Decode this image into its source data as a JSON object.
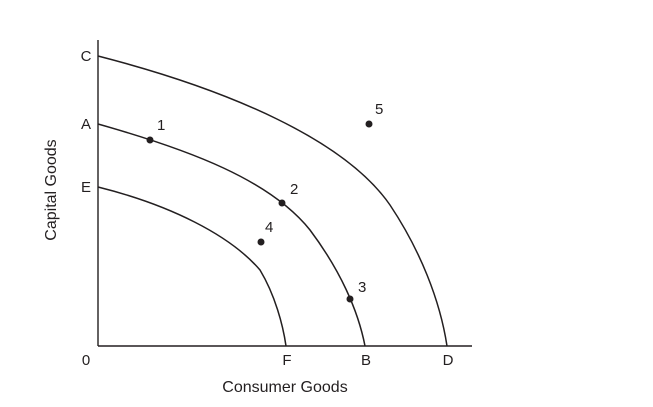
{
  "diagram": {
    "x_axis_title": "Consumer Goods",
    "y_axis_title": "Capital Goods",
    "origin_label": "0",
    "y_axis_labels": {
      "c": "C",
      "a": "A",
      "e": "E"
    },
    "x_axis_labels": {
      "f": "F",
      "b": "B",
      "d": "D"
    },
    "points": [
      {
        "label": "1"
      },
      {
        "label": "2"
      },
      {
        "label": "3"
      },
      {
        "label": "4"
      },
      {
        "label": "5"
      }
    ],
    "curves": [
      {
        "from": "C",
        "to": "D"
      },
      {
        "from": "A",
        "to": "B"
      },
      {
        "from": "E",
        "to": "F"
      }
    ],
    "colors": {
      "ink": "#231f20",
      "background": "#ffffff"
    }
  }
}
